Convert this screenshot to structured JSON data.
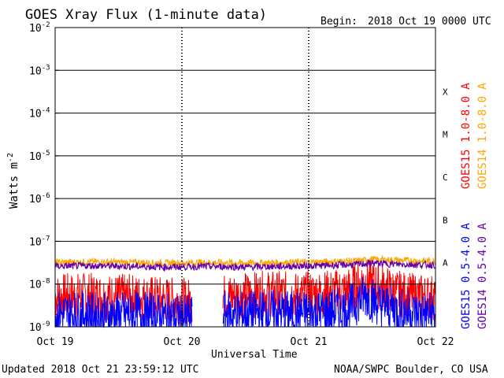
{
  "chart_data": {
    "type": "line",
    "title": "GOES Xray Flux (1-minute data)",
    "begin_label": "Begin:",
    "begin_value": "2018 Oct 19 0000 UTC",
    "xlabel": "Universal Time",
    "ylabel_base": "Watts m",
    "ylabel_exp": "-2",
    "y_scale": "log",
    "ylim": [
      1e-09,
      0.01
    ],
    "y_ticks": [
      {
        "value": 0.01,
        "base": "10",
        "exp": "-2"
      },
      {
        "value": 0.001,
        "base": "10",
        "exp": "-3"
      },
      {
        "value": 0.0001,
        "base": "10",
        "exp": "-4"
      },
      {
        "value": 1e-05,
        "base": "10",
        "exp": "-5"
      },
      {
        "value": 1e-06,
        "base": "10",
        "exp": "-6"
      },
      {
        "value": 1e-07,
        "base": "10",
        "exp": "-7"
      },
      {
        "value": 1e-08,
        "base": "10",
        "exp": "-8"
      },
      {
        "value": 1e-09,
        "base": "10",
        "exp": "-9"
      }
    ],
    "x_range_days": [
      0,
      3
    ],
    "x_ticks": [
      {
        "day": 0,
        "label": "Oct 19"
      },
      {
        "day": 1,
        "label": "Oct 20"
      },
      {
        "day": 2,
        "label": "Oct 21"
      },
      {
        "day": 3,
        "label": "Oct 22"
      }
    ],
    "flare_classes": [
      {
        "label": "X",
        "value": 0.0001
      },
      {
        "label": "M",
        "value": 1e-05
      },
      {
        "label": "C",
        "value": 1e-06
      },
      {
        "label": "B",
        "value": 1e-07
      },
      {
        "label": "A",
        "value": 1e-08
      }
    ],
    "gridlines_at": [
      0.001,
      0.0001,
      1e-05,
      1e-06,
      1e-07,
      1e-08
    ],
    "data_gap_days": [
      1.08,
      1.32
    ],
    "series": [
      {
        "name": "GOES15 1.0-8.0 A",
        "color": "#ff0000",
        "x_days": [
          0,
          0.2,
          0.4,
          0.6,
          0.8,
          1.0,
          1.08,
          1.32,
          1.5,
          1.7,
          1.9,
          2.1,
          2.3,
          2.45,
          2.55,
          2.7,
          2.85,
          3.0
        ],
        "values": [
          5e-09,
          5.5e-09,
          5e-09,
          5e-09,
          4.5e-09,
          4e-09,
          4e-09,
          5e-09,
          5.5e-09,
          6e-09,
          5.5e-09,
          6e-09,
          7e-09,
          1.2e-08,
          9e-09,
          6e-09,
          5e-09,
          5e-09
        ]
      },
      {
        "name": "GOES14 1.0-8.0 A",
        "color": "#ffa500",
        "x_days": [
          0,
          0.3,
          0.6,
          0.9,
          1.2,
          1.5,
          1.8,
          2.1,
          2.4,
          2.5,
          2.7,
          3.0
        ],
        "values": [
          3.2e-08,
          3.3e-08,
          3.2e-08,
          3.1e-08,
          3.2e-08,
          3.1e-08,
          3.2e-08,
          3.3e-08,
          3.5e-08,
          3.8e-08,
          3.6e-08,
          3.4e-08
        ]
      },
      {
        "name": "GOES15 0.5-4.0 A",
        "color": "#0000ff",
        "x_days": [
          0,
          0.2,
          0.4,
          0.6,
          0.8,
          1.0,
          1.08,
          1.32,
          1.5,
          1.7,
          1.9,
          2.1,
          2.3,
          2.45,
          2.55,
          2.7,
          2.85,
          3.0
        ],
        "values": [
          2e-09,
          2e-09,
          1.8e-09,
          2e-09,
          1.8e-09,
          1.6e-09,
          1.6e-09,
          2e-09,
          2e-09,
          2.2e-09,
          2e-09,
          2.2e-09,
          2.5e-09,
          5.5e-09,
          3.5e-09,
          2.5e-09,
          2e-09,
          2e-09
        ]
      },
      {
        "name": "GOES14 0.5-4.0 A",
        "color": "#6600aa",
        "x_days": [
          0,
          0.3,
          0.6,
          0.9,
          1.2,
          1.5,
          1.8,
          2.1,
          2.4,
          2.5,
          2.7,
          3.0
        ],
        "values": [
          2.6e-08,
          2.7e-08,
          2.6e-08,
          2.5e-08,
          2.6e-08,
          2.5e-08,
          2.6e-08,
          2.7e-08,
          2.9e-08,
          3.1e-08,
          2.9e-08,
          2.8e-08
        ]
      }
    ]
  },
  "footer": {
    "updated": "Updated 2018 Oct 21 23:59:12 UTC",
    "credit": "NOAA/SWPC Boulder, CO USA"
  }
}
